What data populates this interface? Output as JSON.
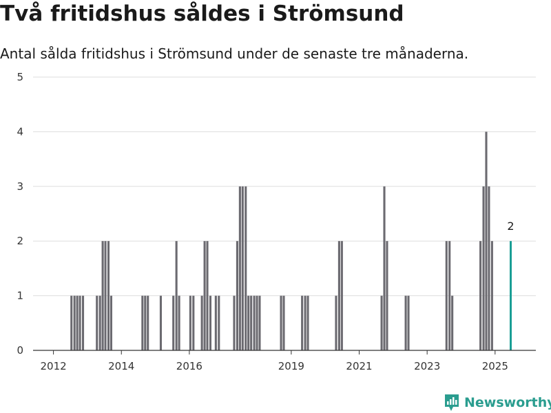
{
  "title": "Två fritidshus såldes i Strömsund",
  "subtitle": "Antal sålda fritidshus i Strömsund under de senaste tre månaderna.",
  "brand": "Newsworthy",
  "colors": {
    "bar": "#6b6a70",
    "highlight": "#1a9e95",
    "grid": "#dddddd",
    "brand": "#2a9d8f"
  },
  "chart_data": {
    "type": "bar",
    "x_unit": "decimal year",
    "xlim": [
      2011.4,
      2026.2
    ],
    "ylim": [
      0,
      5
    ],
    "yticks": [
      0,
      1,
      2,
      3,
      4,
      5
    ],
    "xticks": [
      2012,
      2014,
      2016,
      2019,
      2021,
      2023,
      2025
    ],
    "xtick_labels": [
      "2012",
      "2014",
      "2016",
      "2019",
      "2021",
      "2023",
      "2025"
    ],
    "bar_width": 0.083,
    "series": [
      {
        "x": [
          2012.54,
          2012.63,
          2012.71,
          2012.79,
          2012.88,
          2013.29,
          2013.38,
          2013.46,
          2013.54,
          2013.63,
          2013.71,
          2014.63,
          2014.71,
          2014.79,
          2015.17,
          2015.54,
          2015.63,
          2015.71,
          2016.04,
          2016.13,
          2016.38,
          2016.46,
          2016.54,
          2016.63,
          2016.79,
          2016.88,
          2017.33,
          2017.42,
          2017.5,
          2017.58,
          2017.67,
          2017.75,
          2017.83,
          2017.92,
          2018.0,
          2018.08,
          2018.71,
          2018.79,
          2019.33,
          2019.42,
          2019.5,
          2020.33,
          2020.42,
          2020.5,
          2021.67,
          2021.75,
          2021.83,
          2022.38,
          2022.46,
          2023.58,
          2023.67,
          2023.75,
          2024.58,
          2024.67,
          2024.75,
          2024.83,
          2024.92
        ],
        "values": [
          1,
          1,
          1,
          1,
          1,
          1,
          1,
          2,
          2,
          2,
          1,
          1,
          1,
          1,
          1,
          1,
          2,
          1,
          1,
          1,
          1,
          2,
          2,
          1,
          1,
          1,
          1,
          2,
          3,
          3,
          3,
          1,
          1,
          1,
          1,
          1,
          1,
          1,
          1,
          1,
          1,
          1,
          2,
          2,
          1,
          3,
          2,
          1,
          1,
          2,
          2,
          1,
          2,
          3,
          4,
          3,
          2
        ]
      }
    ],
    "highlight": {
      "x": 2025.46,
      "value": 2,
      "label": "2"
    }
  }
}
